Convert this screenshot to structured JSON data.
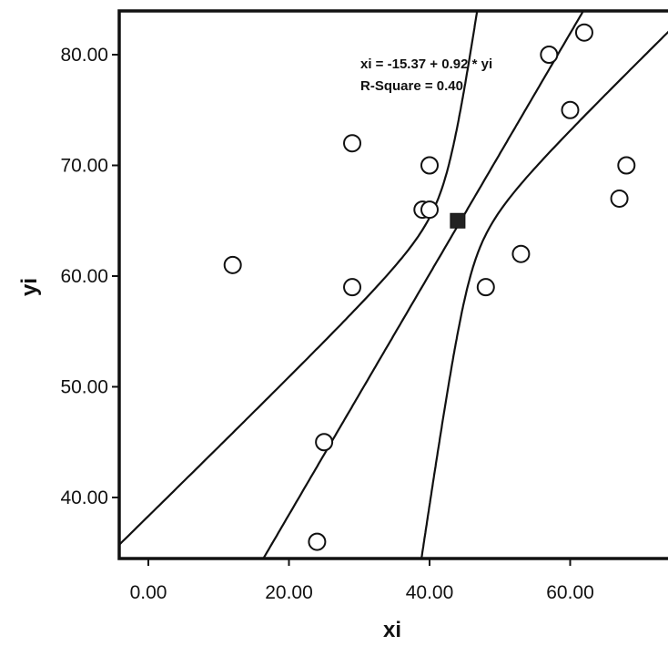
{
  "chart_data": {
    "type": "scatter",
    "xlabel": "xi",
    "ylabel": "yi",
    "xlim": [
      -2,
      72
    ],
    "ylim": [
      34.3,
      84.4
    ],
    "x_ticks": [
      "0.00",
      "20.00",
      "40.00",
      "60.00"
    ],
    "y_ticks": [
      "40.00",
      "50.00",
      "60.00",
      "70.00",
      "80.00"
    ],
    "grid": false,
    "points": [
      {
        "x": 12,
        "y": 61
      },
      {
        "x": 24,
        "y": 36
      },
      {
        "x": 25,
        "y": 45
      },
      {
        "x": 29,
        "y": 72
      },
      {
        "x": 29,
        "y": 59
      },
      {
        "x": 39,
        "y": 66
      },
      {
        "x": 40,
        "y": 66
      },
      {
        "x": 40,
        "y": 70
      },
      {
        "x": 48,
        "y": 59
      },
      {
        "x": 53,
        "y": 62
      },
      {
        "x": 57,
        "y": 80
      },
      {
        "x": 60,
        "y": 75
      },
      {
        "x": 62,
        "y": 82
      },
      {
        "x": 67,
        "y": 67
      },
      {
        "x": 68,
        "y": 70
      }
    ],
    "mean_point": {
      "x": 44,
      "y": 65
    },
    "fit": {
      "intercept": -15.37,
      "slope": 0.92
    },
    "annotations": [
      "xi = -15.37 + 0.92 * yi",
      "R-Square = 0.40"
    ]
  }
}
